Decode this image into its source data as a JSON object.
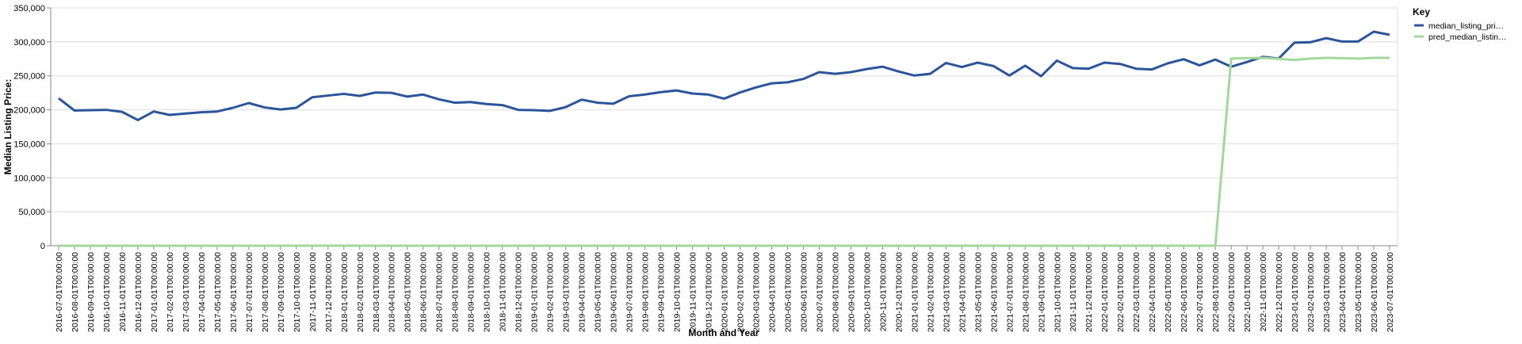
{
  "chart_data": {
    "type": "line",
    "x_label": "Month and Year",
    "y_label": "Median Listing Price:",
    "legend_title": "Key",
    "legend_position": "right",
    "grid": true,
    "categories": [
      "2016-07-01T00:00:00",
      "2016-08-01T00:00:00",
      "2016-09-01T00:00:00",
      "2016-10-01T00:00:00",
      "2016-11-01T00:00:00",
      "2016-12-01T00:00:00",
      "2017-01-01T00:00:00",
      "2017-02-01T00:00:00",
      "2017-03-01T00:00:00",
      "2017-04-01T00:00:00",
      "2017-05-01T00:00:00",
      "2017-06-01T00:00:00",
      "2017-07-01T00:00:00",
      "2017-08-01T00:00:00",
      "2017-09-01T00:00:00",
      "2017-10-01T00:00:00",
      "2017-11-01T00:00:00",
      "2017-12-01T00:00:00",
      "2018-01-01T00:00:00",
      "2018-02-01T00:00:00",
      "2018-03-01T00:00:00",
      "2018-04-01T00:00:00",
      "2018-05-01T00:00:00",
      "2018-06-01T00:00:00",
      "2018-07-01T00:00:00",
      "2018-08-01T00:00:00",
      "2018-09-01T00:00:00",
      "2018-10-01T00:00:00",
      "2018-11-01T00:00:00",
      "2018-12-01T00:00:00",
      "2019-01-01T00:00:00",
      "2019-02-01T00:00:00",
      "2019-03-01T00:00:00",
      "2019-04-01T00:00:00",
      "2019-05-01T00:00:00",
      "2019-06-01T00:00:00",
      "2019-07-01T00:00:00",
      "2019-08-01T00:00:00",
      "2019-09-01T00:00:00",
      "2019-10-01T00:00:00",
      "2019-11-01T00:00:00",
      "2019-12-01T00:00:00",
      "2020-01-01T00:00:00",
      "2020-02-01T00:00:00",
      "2020-03-01T00:00:00",
      "2020-04-01T00:00:00",
      "2020-05-01T00:00:00",
      "2020-06-01T00:00:00",
      "2020-07-01T00:00:00",
      "2020-08-01T00:00:00",
      "2020-09-01T00:00:00",
      "2020-10-01T00:00:00",
      "2020-11-01T00:00:00",
      "2020-12-01T00:00:00",
      "2021-01-01T00:00:00",
      "2021-02-01T00:00:00",
      "2021-03-01T00:00:00",
      "2021-04-01T00:00:00",
      "2021-05-01T00:00:00",
      "2021-06-01T00:00:00",
      "2021-07-01T00:00:00",
      "2021-08-01T00:00:00",
      "2021-09-01T00:00:00",
      "2021-10-01T00:00:00",
      "2021-11-01T00:00:00",
      "2021-12-01T00:00:00",
      "2022-01-01T00:00:00",
      "2022-02-01T00:00:00",
      "2022-03-01T00:00:00",
      "2022-04-01T00:00:00",
      "2022-05-01T00:00:00",
      "2022-06-01T00:00:00",
      "2022-07-01T00:00:00",
      "2022-08-01T00:00:00",
      "2022-09-01T00:00:00",
      "2022-10-01T00:00:00",
      "2022-11-01T00:00:00",
      "2022-12-01T00:00:00",
      "2023-01-01T00:00:00",
      "2023-02-01T00:00:00",
      "2023-03-01T00:00:00",
      "2023-04-01T00:00:00",
      "2023-05-01T00:00:00",
      "2023-06-01T00:00:00",
      "2023-07-01T00:00:00"
    ],
    "series": [
      {
        "name": "median_listing_pri…",
        "color": "#2b559b",
        "values": [
          217000,
          199000,
          199500,
          200000,
          197000,
          185000,
          197500,
          192500,
          194500,
          196500,
          197500,
          203000,
          210000,
          203500,
          200500,
          203000,
          218500,
          221000,
          223500,
          220500,
          225500,
          225000,
          219500,
          222500,
          215500,
          210500,
          211500,
          208500,
          207000,
          200000,
          199500,
          198500,
          204000,
          215000,
          210500,
          209000,
          220000,
          222500,
          226000,
          228500,
          224000,
          222500,
          216500,
          225500,
          233000,
          239000,
          240500,
          245500,
          255500,
          253000,
          255500,
          260000,
          263500,
          256500,
          250500,
          253000,
          269000,
          263000,
          269500,
          264500,
          250500,
          265000,
          249500,
          272500,
          261500,
          260500,
          269500,
          267500,
          260500,
          259500,
          268500,
          274500,
          265500,
          274000,
          263500,
          270500,
          278000,
          275500,
          299000,
          299500,
          305500,
          300500,
          300500,
          315000,
          310500
        ]
      },
      {
        "name": "pred_median_listin…",
        "color": "#a1d99b",
        "values": [
          0,
          0,
          0,
          0,
          0,
          0,
          0,
          0,
          0,
          0,
          0,
          0,
          0,
          0,
          0,
          0,
          0,
          0,
          0,
          0,
          0,
          0,
          0,
          0,
          0,
          0,
          0,
          0,
          0,
          0,
          0,
          0,
          0,
          0,
          0,
          0,
          0,
          0,
          0,
          0,
          0,
          0,
          0,
          0,
          0,
          0,
          0,
          0,
          0,
          0,
          0,
          0,
          0,
          0,
          0,
          0,
          0,
          0,
          0,
          0,
          0,
          0,
          0,
          0,
          0,
          0,
          0,
          0,
          0,
          0,
          0,
          0,
          0,
          0,
          275500,
          276000,
          276500,
          275000,
          273500,
          275500,
          276500,
          276000,
          275500,
          276500,
          276500
        ]
      }
    ],
    "ylim": [
      0,
      350000
    ],
    "yticks": [
      0,
      {
        "value": 50000,
        "label": "50,000"
      },
      {
        "value": 100000,
        "label": "100,000"
      },
      {
        "value": 150000,
        "label": "150,000"
      },
      {
        "value": 200000,
        "label": "200,000"
      },
      {
        "value": 250000,
        "label": "250,000"
      },
      {
        "value": 300000,
        "label": "300,000"
      },
      {
        "value": 350000,
        "label": "350,000"
      }
    ]
  }
}
